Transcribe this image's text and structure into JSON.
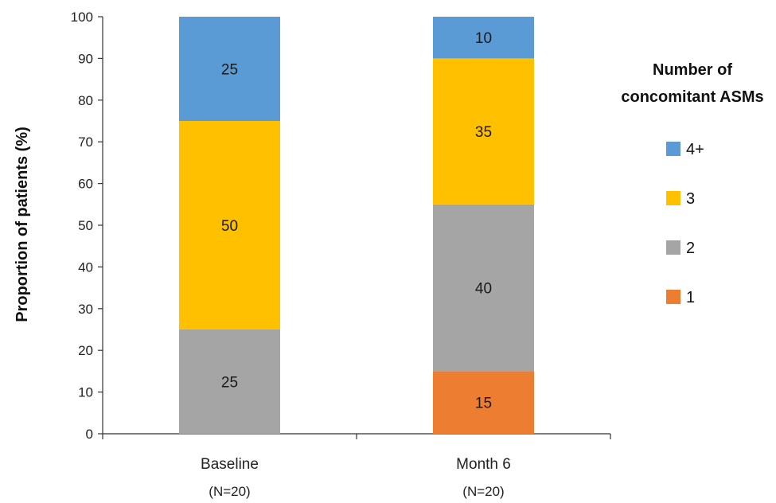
{
  "chart_data": {
    "type": "bar",
    "stacked": true,
    "title": "",
    "xlabel": "",
    "ylabel": "Proportion of patients (%)",
    "ylim": [
      0,
      100
    ],
    "yticks": [
      0,
      10,
      20,
      30,
      40,
      50,
      60,
      70,
      80,
      90,
      100
    ],
    "categories": [
      {
        "label": "Baseline",
        "sublabel": "(N=20)"
      },
      {
        "label": "Month 6",
        "sublabel": "(N=20)"
      }
    ],
    "series": [
      {
        "name": "1",
        "color": "#ED7D31",
        "values": [
          0,
          15
        ]
      },
      {
        "name": "2",
        "color": "#A5A5A5",
        "values": [
          25,
          40
        ]
      },
      {
        "name": "3",
        "color": "#FFC000",
        "values": [
          50,
          35
        ]
      },
      {
        "name": "4+",
        "color": "#5B9BD5",
        "values": [
          25,
          10
        ]
      }
    ],
    "legend": {
      "title_lines": [
        "Number of",
        "concomitant ASMs"
      ],
      "placement": "right",
      "order": [
        "4+",
        "3",
        "2",
        "1"
      ]
    },
    "grid": false
  }
}
